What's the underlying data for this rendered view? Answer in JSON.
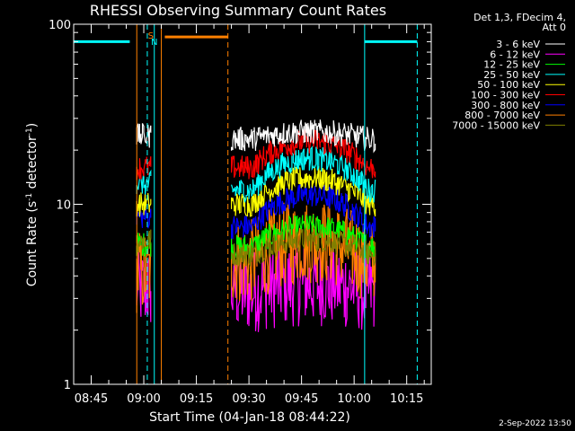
{
  "chart_data": {
    "type": "line",
    "title": "RHESSI Observing Summary Count Rates",
    "xlabel": "Start Time (04-Jan-18 08:44:22)",
    "ylabel_parts": [
      "Count Rate (s",
      "-1",
      " detector",
      "-1",
      ")"
    ],
    "yscale": "log",
    "ylim": [
      1,
      100
    ],
    "y_ticks": [
      {
        "value": 1,
        "label": "1"
      },
      {
        "value": 10,
        "label": "10"
      },
      {
        "value": 100,
        "label": "100"
      }
    ],
    "x_range": [
      "08:40",
      "10:22"
    ],
    "x_ticks": [
      {
        "time": "08:45",
        "label": "08:45"
      },
      {
        "time": "09:00",
        "label": "09:00"
      },
      {
        "time": "09:15",
        "label": "09:15"
      },
      {
        "time": "09:30",
        "label": "09:30"
      },
      {
        "time": "09:45",
        "label": "09:45"
      },
      {
        "time": "10:00",
        "label": "10:00"
      },
      {
        "time": "10:15",
        "label": "10:15"
      }
    ],
    "legend_header": [
      "Det 1,3, FDecim 4,",
      "Att 0"
    ],
    "series": [
      {
        "name": "3 - 6 keV",
        "color": "#ffffff",
        "level_a": 24,
        "level_b": 23,
        "peak": 1.1
      },
      {
        "name": "6 - 12 keV",
        "color": "#ff00ff",
        "level_a": 3.4,
        "level_b": 3.3,
        "peak": 1.1
      },
      {
        "name": "12 - 25 keV",
        "color": "#00ff00",
        "level_a": 6.0,
        "level_b": 5.8,
        "peak": 1.3
      },
      {
        "name": "25 - 50 keV",
        "color": "#00ffff",
        "level_a": 13,
        "level_b": 12,
        "peak": 1.5
      },
      {
        "name": "50 - 100 keV",
        "color": "#ffff00",
        "level_a": 10,
        "level_b": 10,
        "peak": 1.4
      },
      {
        "name": "100 - 300 keV",
        "color": "#ff0000",
        "level_a": 16,
        "level_b": 16,
        "peak": 1.4
      },
      {
        "name": "300 - 800 keV",
        "color": "#0000ff",
        "level_a": 8.5,
        "level_b": 7.5,
        "peak": 1.5
      },
      {
        "name": "800 - 7000 keV",
        "color": "#ff8000",
        "level_a": 4.2,
        "level_b": 4.8,
        "peak": 1.3
      },
      {
        "name": "7000 - 15000 keV",
        "color": "#808000",
        "level_a": 6.3,
        "level_b": 5.3,
        "peak": 1.2
      }
    ],
    "data_intervals": [
      [
        "08:58",
        "09:02"
      ],
      [
        "09:25",
        "10:06"
      ]
    ],
    "night_segments": [
      {
        "start": "08:40",
        "end": "08:56",
        "value": 80
      },
      {
        "start": "10:03",
        "end": "10:18",
        "value": 80
      }
    ],
    "saa_segments": [
      {
        "start": "09:06",
        "end": "09:24",
        "value": 85
      }
    ],
    "markers": [
      {
        "time": "08:40",
        "color": "#00ffff",
        "style": "solid"
      },
      {
        "time": "09:01",
        "color": "#00ffff",
        "style": "dashed"
      },
      {
        "time": "09:03",
        "color": "#00ffff",
        "style": "solid"
      },
      {
        "time": "10:03",
        "color": "#00ffff",
        "style": "solid"
      },
      {
        "time": "10:18",
        "color": "#00ffff",
        "style": "dashed"
      },
      {
        "time": "08:58",
        "color": "#ff8000",
        "style": "solid"
      },
      {
        "time": "09:05",
        "color": "#ff8000",
        "style": "solid"
      },
      {
        "time": "09:24",
        "color": "#ff8000",
        "style": "dashed"
      }
    ],
    "flags": [
      {
        "time": "09:02",
        "text": "S",
        "color": "#ff8000",
        "row": 0
      },
      {
        "time": "09:03",
        "text": "N",
        "color": "#00ffff",
        "row": 1
      }
    ],
    "legend_placement": "top-right",
    "grid": false,
    "footer_date": "2-Sep-2022 13:50"
  }
}
